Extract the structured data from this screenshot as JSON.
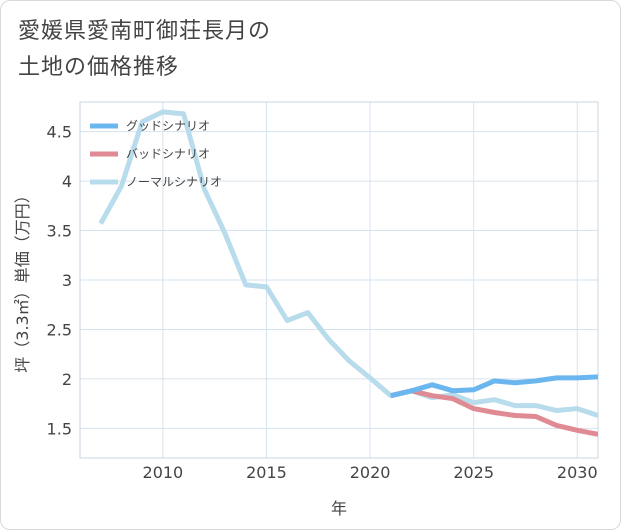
{
  "title": {
    "line1": "愛媛県愛南町御荘長月の",
    "line2": "土地の価格推移"
  },
  "chart_data": {
    "type": "line",
    "xlabel": "年",
    "ylabel": "坪（3.3㎡）単価（万円）",
    "xlim": [
      2006,
      2031
    ],
    "ylim": [
      1.2,
      4.8
    ],
    "x_ticks": [
      2010,
      2015,
      2020,
      2025,
      2030
    ],
    "y_ticks": [
      1.5,
      2,
      2.5,
      3,
      3.5,
      4,
      4.5
    ],
    "y_tick_labels": [
      "1.5",
      "2",
      "2.5",
      "3",
      "3.5",
      "4",
      "4.5"
    ],
    "grid": true,
    "legend_position": "top-left",
    "series": [
      {
        "name": "グッドシナリオ",
        "color": "#6cb6f0",
        "x": [
          2021,
          2022,
          2023,
          2024,
          2025,
          2026,
          2027,
          2028,
          2029,
          2030,
          2031
        ],
        "values": [
          1.83,
          1.88,
          1.94,
          1.88,
          1.89,
          1.98,
          1.96,
          1.98,
          2.01,
          2.01,
          2.02
        ]
      },
      {
        "name": "バッドシナリオ",
        "color": "#e08a93",
        "x": [
          2021,
          2022,
          2023,
          2024,
          2025,
          2026,
          2027,
          2028,
          2029,
          2030,
          2031
        ],
        "values": [
          1.83,
          1.88,
          1.83,
          1.8,
          1.7,
          1.66,
          1.63,
          1.62,
          1.53,
          1.48,
          1.44
        ]
      },
      {
        "name": "ノーマルシナリオ",
        "color": "#b8dcec",
        "x": [
          2007,
          2008,
          2009,
          2010,
          2011,
          2012,
          2013,
          2014,
          2015,
          2016,
          2017,
          2018,
          2019,
          2020,
          2021,
          2022,
          2023,
          2024,
          2025,
          2026,
          2027,
          2028,
          2029,
          2030,
          2031
        ],
        "values": [
          3.57,
          3.95,
          4.6,
          4.7,
          4.68,
          3.92,
          3.47,
          2.95,
          2.93,
          2.59,
          2.67,
          2.4,
          2.18,
          2.01,
          1.83,
          1.88,
          1.81,
          1.84,
          1.76,
          1.79,
          1.73,
          1.73,
          1.68,
          1.7,
          1.63
        ]
      }
    ]
  }
}
